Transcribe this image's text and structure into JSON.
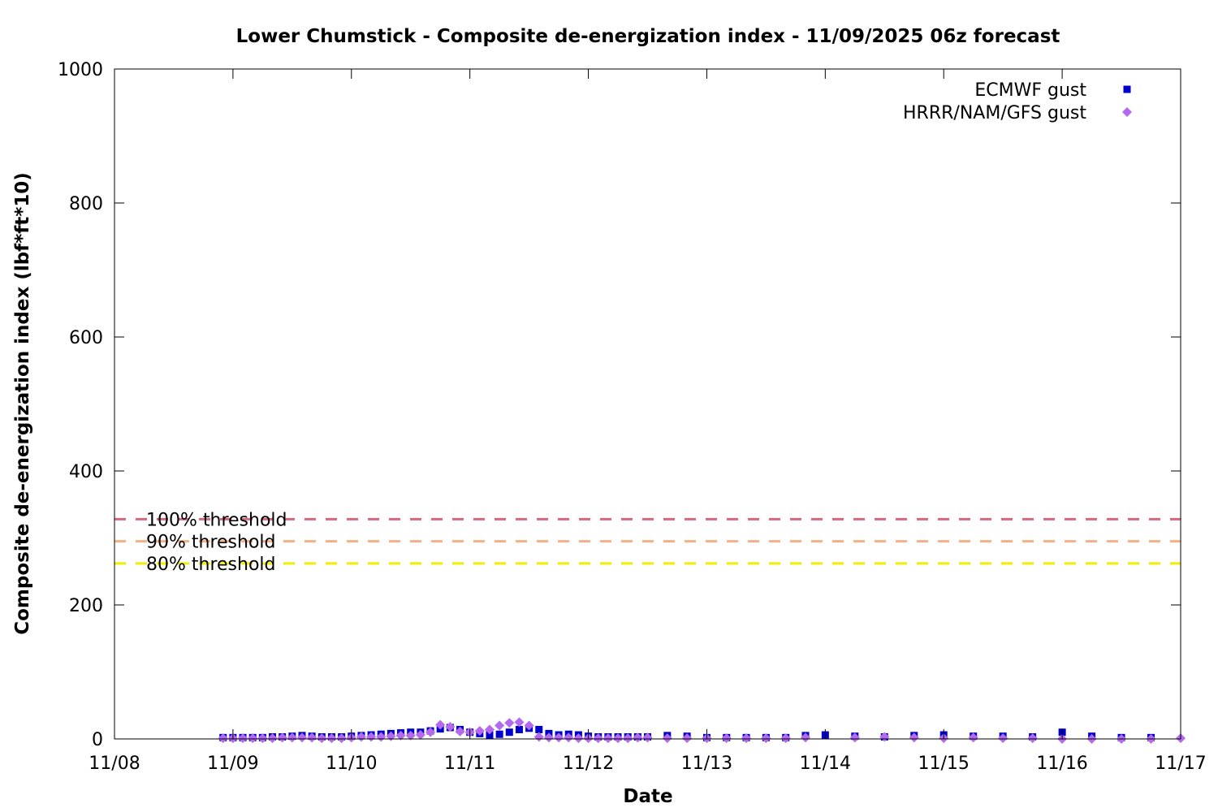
{
  "chart_data": {
    "type": "scatter",
    "title": "Lower Chumstick - Composite de-energization index - 11/09/2025 06z forecast",
    "xlabel": "Date",
    "ylabel": "Composite de-energization index (lbf*ft*10)",
    "xlim": [
      "11/08",
      "11/17"
    ],
    "ylim": [
      0,
      1000
    ],
    "x_tick_labels": [
      "11/08",
      "11/09",
      "11/10",
      "11/11",
      "11/12",
      "11/13",
      "11/14",
      "11/15",
      "11/16",
      "11/17"
    ],
    "y_tick_labels": [
      "0",
      "200",
      "400",
      "600",
      "800",
      "1000"
    ],
    "y_ticks": [
      0,
      200,
      400,
      600,
      800,
      1000
    ],
    "grid": false,
    "legend_position": "top-right",
    "thresholds": [
      {
        "label": "100% threshold",
        "value": 328,
        "color": "#d9667f"
      },
      {
        "label": "90% threshold",
        "value": 295,
        "color": "#f5b183"
      },
      {
        "label": "80% threshold",
        "value": 262,
        "color": "#f2ee00"
      }
    ],
    "series": [
      {
        "name": "ECMWF gust",
        "marker": "square",
        "color": "#0000cc",
        "x": [
          "11/08 22:00",
          "11/09 00:00",
          "11/09 02:00",
          "11/09 04:00",
          "11/09 06:00",
          "11/09 08:00",
          "11/09 10:00",
          "11/09 12:00",
          "11/09 14:00",
          "11/09 16:00",
          "11/09 18:00",
          "11/09 20:00",
          "11/09 22:00",
          "11/10 00:00",
          "11/10 02:00",
          "11/10 04:00",
          "11/10 06:00",
          "11/10 08:00",
          "11/10 10:00",
          "11/10 12:00",
          "11/10 14:00",
          "11/10 16:00",
          "11/10 18:00",
          "11/10 20:00",
          "11/10 22:00",
          "11/11 00:00",
          "11/11 02:00",
          "11/11 04:00",
          "11/11 06:00",
          "11/11 08:00",
          "11/11 10:00",
          "11/11 12:00",
          "11/11 14:00",
          "11/11 16:00",
          "11/11 18:00",
          "11/11 20:00",
          "11/11 22:00",
          "11/12 00:00",
          "11/12 02:00",
          "11/12 04:00",
          "11/12 06:00",
          "11/12 08:00",
          "11/12 10:00",
          "11/12 12:00",
          "11/12 16:00",
          "11/12 20:00",
          "11/13 00:00",
          "11/13 04:00",
          "11/13 08:00",
          "11/13 12:00",
          "11/13 16:00",
          "11/13 20:00",
          "11/14 00:00",
          "11/14 06:00",
          "11/14 12:00",
          "11/14 18:00",
          "11/15 00:00",
          "11/15 06:00",
          "11/15 12:00",
          "11/15 18:00",
          "11/16 00:00",
          "11/16 06:00",
          "11/16 12:00",
          "11/16 18:00"
        ],
        "y": [
          2,
          2,
          2,
          2,
          2,
          3,
          3,
          4,
          5,
          4,
          3,
          3,
          3,
          4,
          5,
          6,
          7,
          8,
          9,
          10,
          10,
          12,
          15,
          17,
          14,
          10,
          8,
          6,
          7,
          10,
          14,
          16,
          14,
          8,
          6,
          7,
          6,
          4,
          3,
          3,
          3,
          3,
          3,
          3,
          5,
          4,
          2,
          2,
          2,
          2,
          2,
          5,
          6,
          4,
          3,
          5,
          6,
          4,
          4,
          3,
          10,
          4,
          2,
          2
        ]
      },
      {
        "name": "HRRR/NAM/GFS gust",
        "marker": "diamond",
        "color": "#b469ee",
        "x": [
          "11/08 22:00",
          "11/09 00:00",
          "11/09 02:00",
          "11/09 04:00",
          "11/09 06:00",
          "11/09 08:00",
          "11/09 10:00",
          "11/09 12:00",
          "11/09 14:00",
          "11/09 16:00",
          "11/09 18:00",
          "11/09 20:00",
          "11/09 22:00",
          "11/10 00:00",
          "11/10 02:00",
          "11/10 04:00",
          "11/10 06:00",
          "11/10 08:00",
          "11/10 10:00",
          "11/10 12:00",
          "11/10 14:00",
          "11/10 16:00",
          "11/10 18:00",
          "11/10 20:00",
          "11/10 22:00",
          "11/11 00:00",
          "11/11 02:00",
          "11/11 04:00",
          "11/11 06:00",
          "11/11 08:00",
          "11/11 10:00",
          "11/11 12:00",
          "11/11 14:00",
          "11/11 16:00",
          "11/11 18:00",
          "11/11 20:00",
          "11/11 22:00",
          "11/12 00:00",
          "11/12 02:00",
          "11/12 04:00",
          "11/12 06:00",
          "11/12 08:00",
          "11/12 10:00",
          "11/12 12:00",
          "11/12 16:00",
          "11/12 20:00",
          "11/13 00:00",
          "11/13 04:00",
          "11/13 08:00",
          "11/13 12:00",
          "11/13 16:00",
          "11/13 20:00",
          "11/14 06:00",
          "11/14 12:00",
          "11/14 18:00",
          "11/15 00:00",
          "11/15 06:00",
          "11/15 12:00",
          "11/15 18:00",
          "11/16 00:00",
          "11/16 06:00",
          "11/16 12:00",
          "11/16 18:00",
          "11/17 00:00"
        ],
        "y": [
          1,
          1,
          1,
          1,
          1,
          1,
          2,
          2,
          2,
          2,
          1,
          1,
          1,
          2,
          3,
          3,
          3,
          4,
          5,
          5,
          6,
          10,
          21,
          18,
          11,
          10,
          12,
          14,
          20,
          24,
          25,
          20,
          3,
          2,
          2,
          2,
          1,
          1,
          1,
          1,
          1,
          1,
          2,
          2,
          1,
          1,
          1,
          1,
          1,
          1,
          1,
          2,
          2,
          3,
          2,
          1,
          2,
          1,
          1,
          0,
          0,
          0,
          0,
          1
        ]
      }
    ]
  }
}
